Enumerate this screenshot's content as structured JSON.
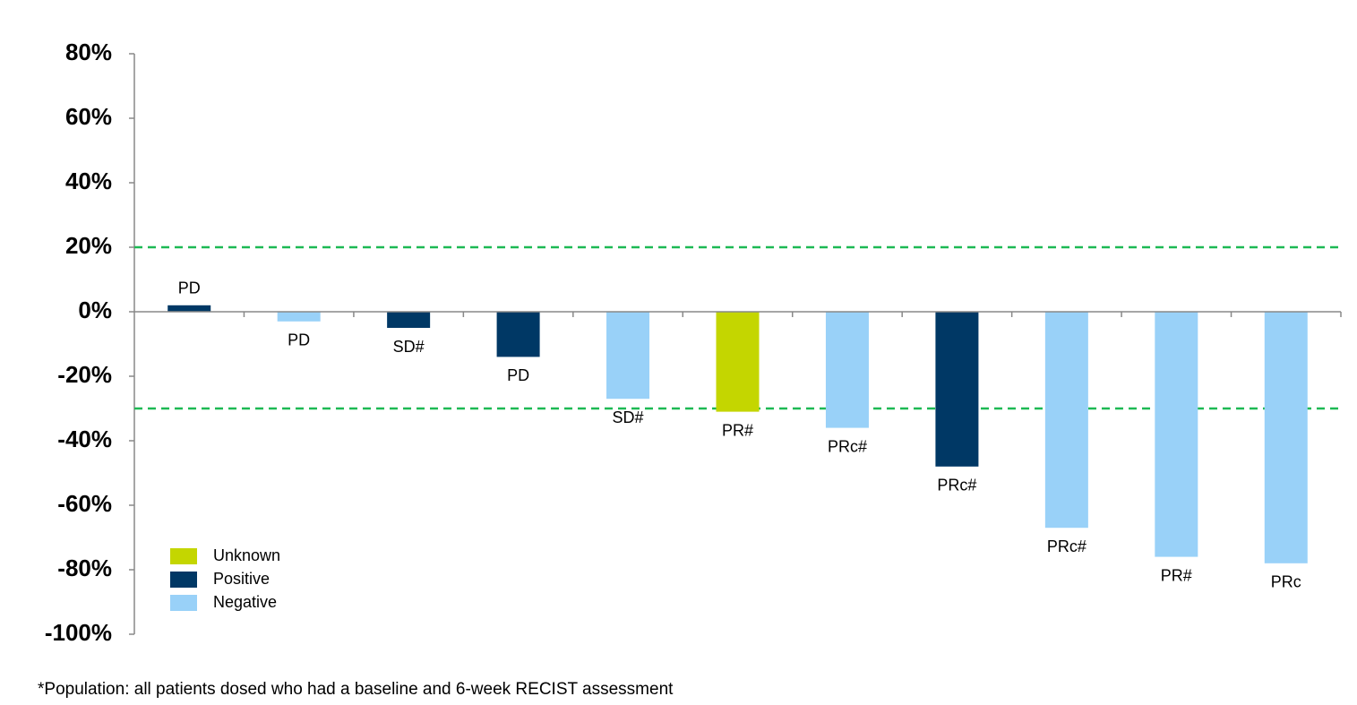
{
  "chart_data": {
    "type": "bar",
    "footnote": "*Population: all patients dosed who had a baseline and 6-week RECIST assessment",
    "categories": [
      null,
      null,
      null,
      null,
      null,
      null,
      null,
      null,
      null,
      null,
      null
    ],
    "series": [
      {
        "name": "Unknown",
        "color": "#c4d600",
        "values": [
          null,
          null,
          null,
          null,
          null,
          -31,
          null,
          null,
          null,
          null,
          null
        ]
      },
      {
        "name": "Positive",
        "color": "#003865",
        "values": [
          2,
          null,
          -5,
          -14,
          null,
          null,
          null,
          -48,
          null,
          null,
          null
        ]
      },
      {
        "name": "Negative",
        "color": "#99d1f8",
        "values": [
          null,
          -3,
          null,
          null,
          -27,
          null,
          -36,
          null,
          -67,
          -76,
          -78
        ]
      }
    ],
    "bar_labels": [
      "PD",
      "PD",
      "SD#",
      "PD",
      "SD#",
      "PR#",
      "PRc#",
      "PRc#",
      "PRc#",
      "PR#",
      "PRc"
    ],
    "reference_lines": [
      20,
      -30
    ],
    "reference_line_color": "#1db954",
    "ylim": [
      -100,
      80
    ],
    "yticks": [
      {
        "value": -100,
        "label": "-100%"
      },
      {
        "value": -80,
        "label": "-80%"
      },
      {
        "value": -60,
        "label": "-60%"
      },
      {
        "value": -40,
        "label": "-40%"
      },
      {
        "value": -20,
        "label": "-20%"
      },
      {
        "value": 0,
        "label": "0%"
      },
      {
        "value": 20,
        "label": "20%"
      },
      {
        "value": 40,
        "label": "40%"
      },
      {
        "value": 60,
        "label": "60%"
      },
      {
        "value": 80,
        "label": "80%"
      }
    ],
    "legend": "lower left"
  }
}
